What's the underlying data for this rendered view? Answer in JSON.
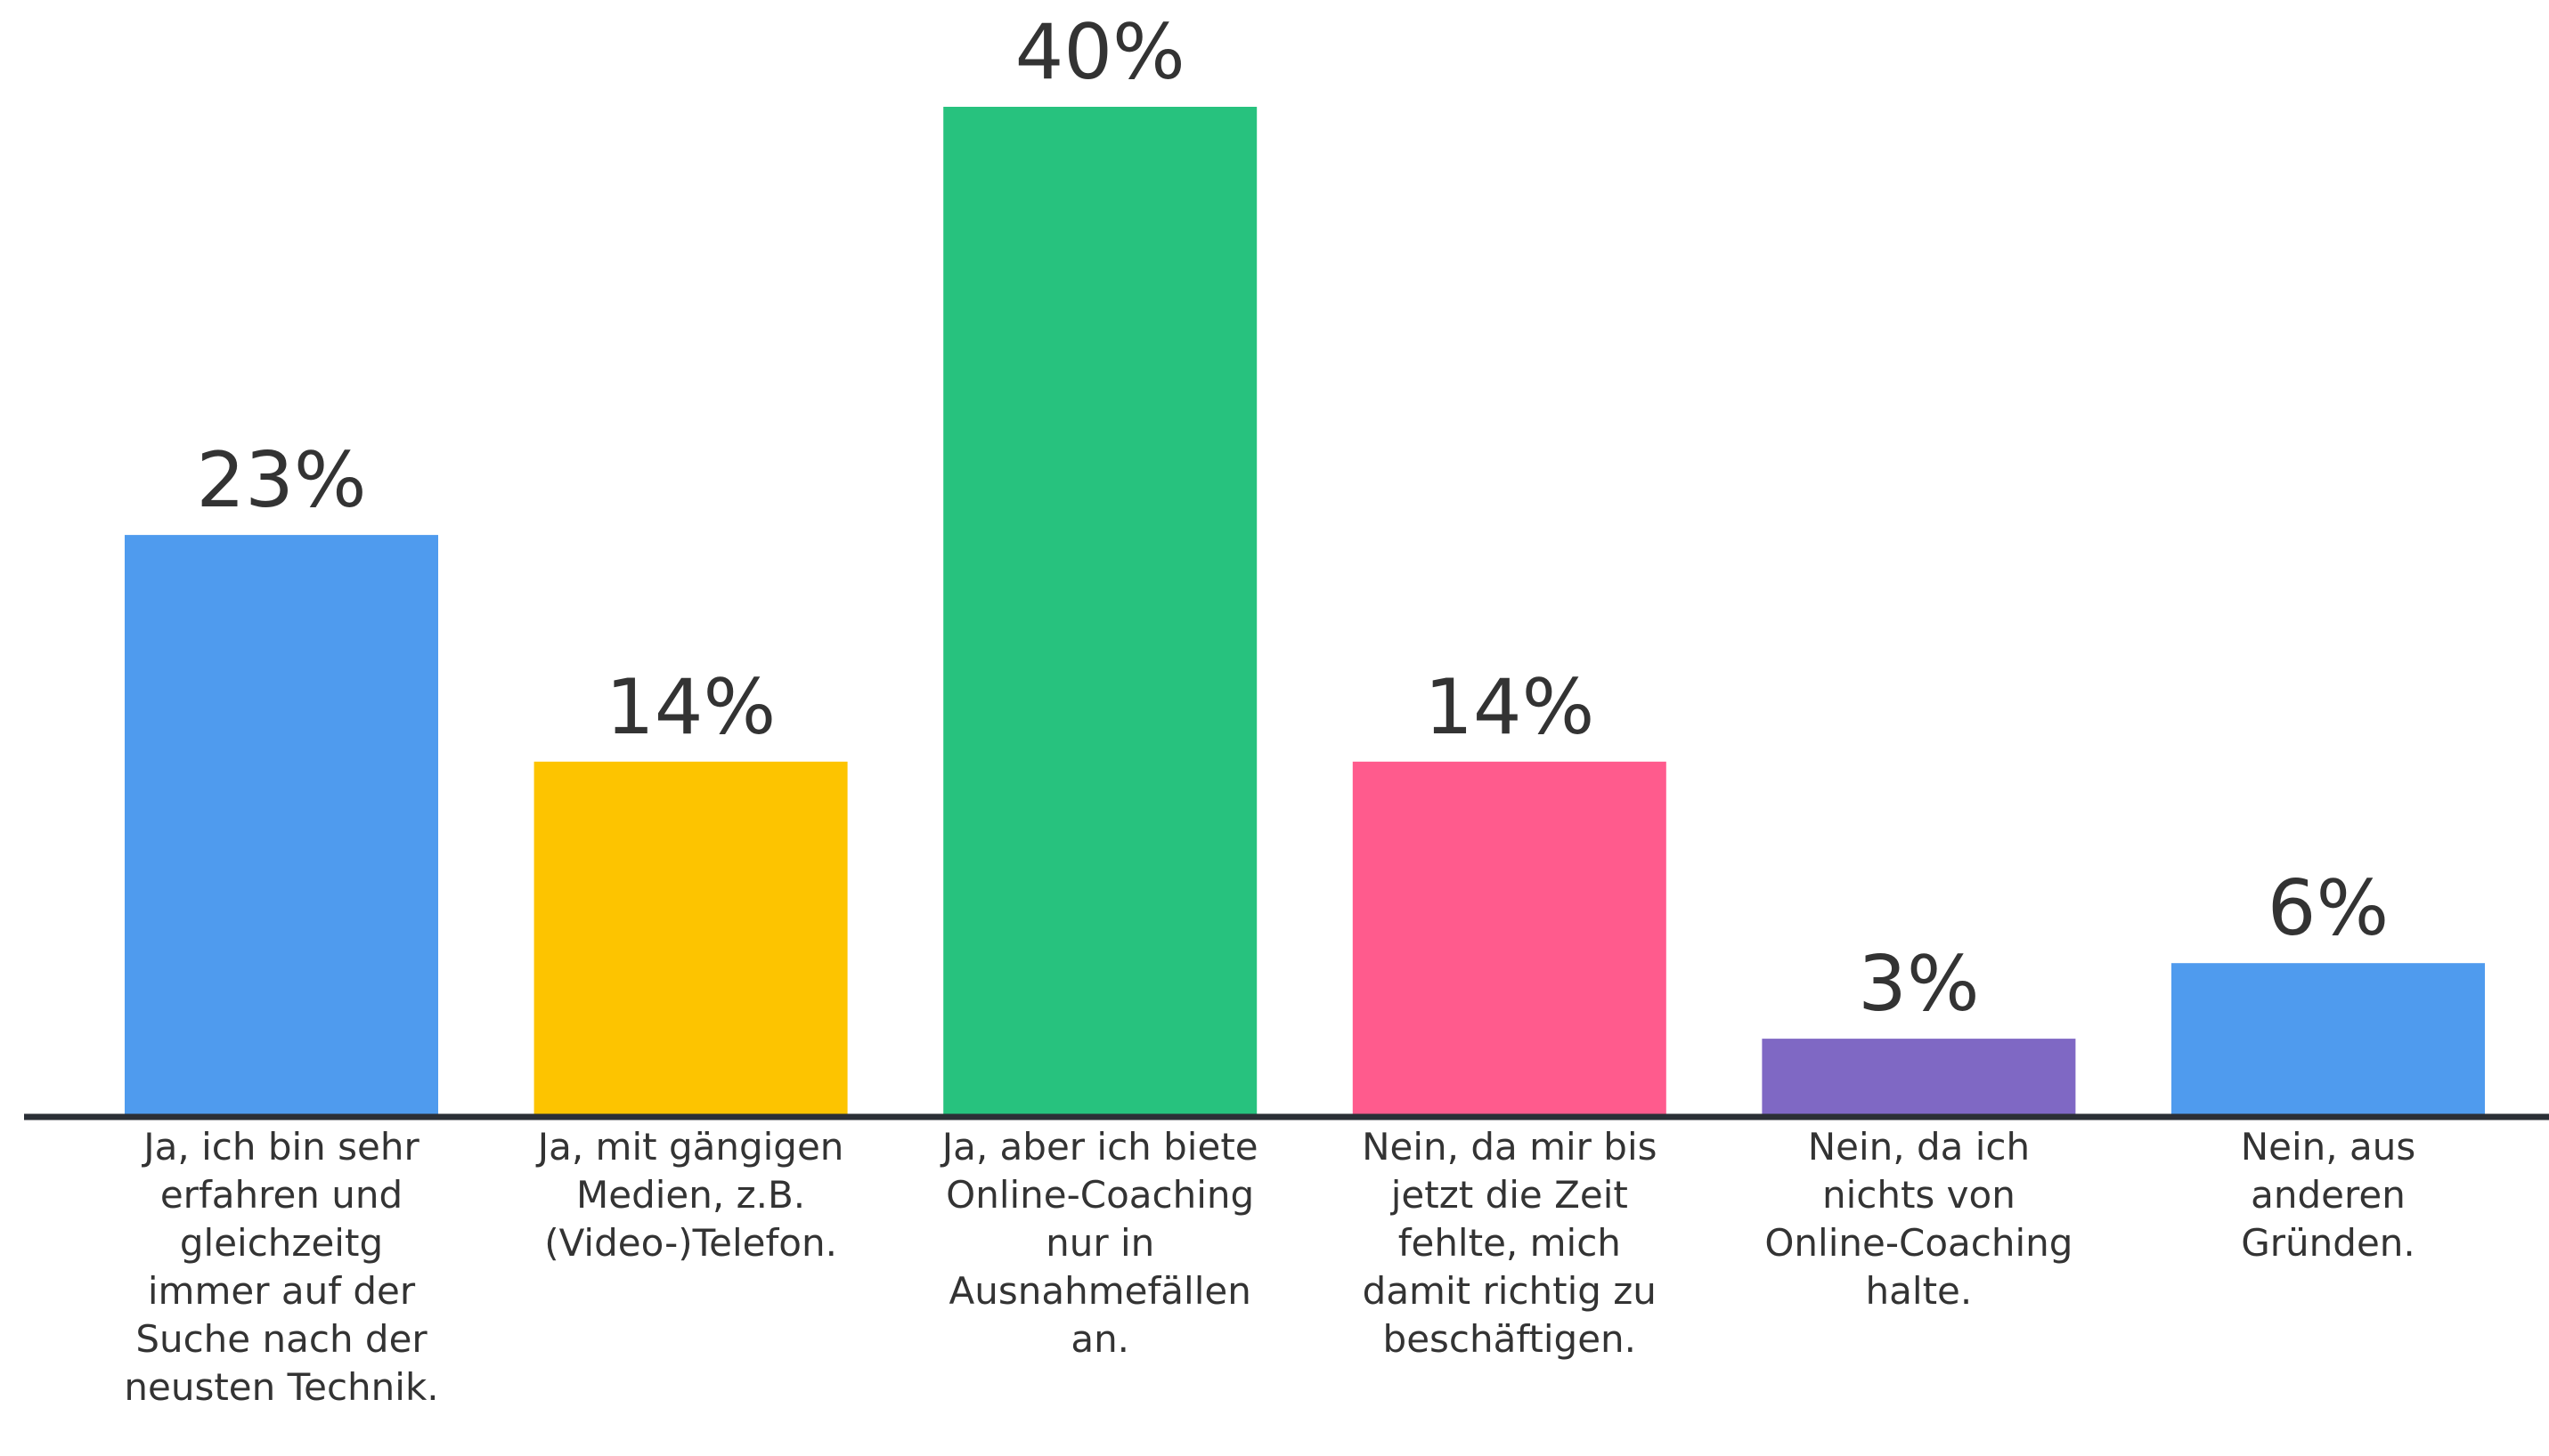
{
  "chart_data": {
    "type": "bar",
    "categories": [
      "Ja, ich bin sehr erfahren und gleichzeitg immer auf der Suche nach der neusten Technik.",
      "Ja, mit gängigen Medien, z.B. (Video-)Telefon.",
      "Ja, aber ich biete Online-Coaching nur in Ausnahmefällen an.",
      "Nein, da mir bis jetzt die Zeit fehlte, mich damit richtig zu beschäftigen.",
      "Nein, da ich nichts von Online-Coaching halte.",
      "Nein, aus anderen Gründen."
    ],
    "values": [
      23,
      14,
      40,
      14,
      3,
      6
    ],
    "value_labels": [
      "23%",
      "14%",
      "40%",
      "14%",
      "3%",
      "6%"
    ],
    "colors": [
      "#4f9bee",
      "#fdc400",
      "#27c27e",
      "#ff5b8d",
      "#7f68c4",
      "#4f9bee"
    ]
  }
}
